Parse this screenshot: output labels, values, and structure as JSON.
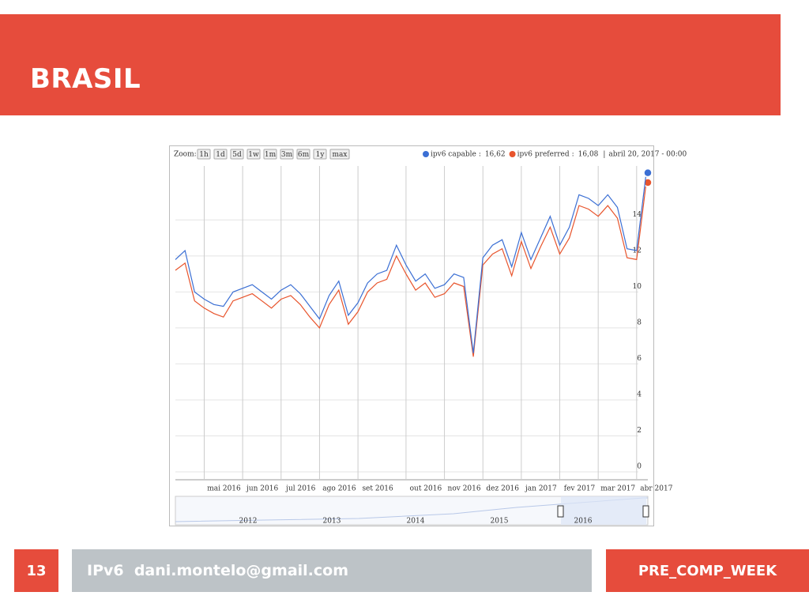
{
  "slide": {
    "title": "BRASIL",
    "page_number": "13",
    "footer_text": "IPv6  dani.montelo@gmail.com",
    "footer_right": "PRE_COMP_WEEK"
  },
  "chart_data": {
    "type": "line",
    "zoom_label": "Zoom:",
    "zoom_buttons": [
      "1h",
      "1d",
      "5d",
      "1w",
      "1m",
      "3m",
      "6m",
      "1y",
      "max"
    ],
    "date_label": "abril 20, 2017 - 00:00",
    "categories": [
      null,
      null,
      null,
      "mai 2016",
      null,
      null,
      null,
      "jun 2016",
      null,
      null,
      null,
      "jul 2016",
      null,
      null,
      null,
      "ago 2016",
      null,
      null,
      null,
      "set 2016",
      null,
      null,
      null,
      null,
      "out 2016",
      null,
      null,
      null,
      "nov 2016",
      null,
      null,
      null,
      "dez 2016",
      null,
      null,
      null,
      "jan 2017",
      null,
      null,
      null,
      "fev 2017",
      null,
      null,
      null,
      "mar 2017",
      null,
      null,
      null,
      "abr 2017",
      null
    ],
    "series": [
      {
        "name": "ipv6 capable",
        "current_label": "16,62",
        "color": "#3b6fd4",
        "values": [
          11.8,
          12.3,
          10.0,
          9.6,
          9.3,
          9.2,
          10.0,
          10.2,
          10.4,
          10.0,
          9.6,
          10.1,
          10.4,
          9.9,
          9.2,
          8.5,
          9.8,
          10.6,
          8.7,
          9.4,
          10.5,
          11.0,
          11.2,
          12.6,
          11.5,
          10.6,
          11.0,
          10.2,
          10.4,
          11.0,
          10.8,
          6.6,
          11.9,
          12.6,
          12.9,
          11.4,
          13.3,
          11.8,
          13.0,
          14.2,
          12.6,
          13.6,
          15.4,
          15.2,
          14.8,
          15.4,
          14.7,
          12.4,
          12.3,
          16.62
        ]
      },
      {
        "name": "ipv6 preferred",
        "current_label": "16,08",
        "color": "#e8542c",
        "values": [
          11.2,
          11.6,
          9.5,
          9.1,
          8.8,
          8.6,
          9.5,
          9.7,
          9.9,
          9.5,
          9.1,
          9.6,
          9.8,
          9.3,
          8.6,
          8.0,
          9.3,
          10.1,
          8.2,
          8.9,
          10.0,
          10.5,
          10.7,
          12.0,
          11.0,
          10.1,
          10.5,
          9.7,
          9.9,
          10.5,
          10.3,
          6.4,
          11.5,
          12.1,
          12.4,
          10.9,
          12.8,
          11.3,
          12.5,
          13.6,
          12.1,
          13.0,
          14.8,
          14.6,
          14.2,
          14.8,
          14.1,
          11.9,
          11.8,
          16.08
        ]
      }
    ],
    "ylim": [
      0,
      17
    ],
    "yticks": [
      0,
      2,
      4,
      6,
      8,
      10,
      12,
      14
    ],
    "grid": true,
    "navigator_labels": [
      "2012",
      "2013",
      "2014",
      "2015",
      "2016"
    ]
  }
}
